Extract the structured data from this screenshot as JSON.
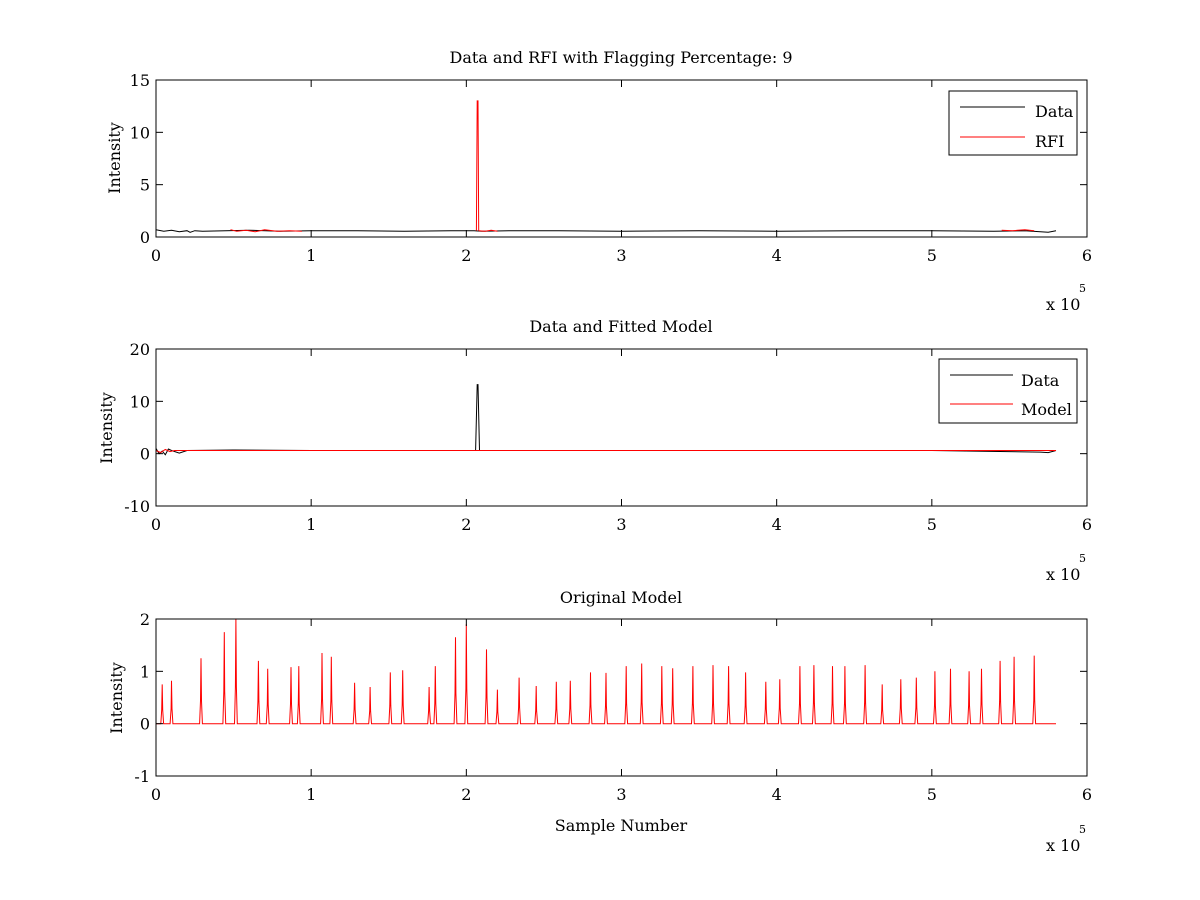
{
  "figure": {
    "background": "#ffffff",
    "axis_color": "#000000"
  },
  "chart_data": [
    {
      "type": "line",
      "title": "Data and RFI with Flagging Percentage: 9",
      "xlabel": "",
      "ylabel": "Intensity",
      "xlim": [
        0,
        600000
      ],
      "ylim": [
        0,
        15
      ],
      "x_ticks": [
        0,
        100000,
        200000,
        300000,
        400000,
        500000,
        600000
      ],
      "x_tick_labels": [
        "0",
        "1",
        "2",
        "3",
        "4",
        "5",
        "6"
      ],
      "y_ticks": [
        0,
        5,
        10,
        15
      ],
      "y_tick_labels": [
        "0",
        "5",
        "10",
        "15"
      ],
      "x_multiplier": {
        "base": "x 10",
        "exponent": "5"
      },
      "grid": false,
      "legend_position": "top-right",
      "legend": [
        "Data",
        "RFI"
      ],
      "series": [
        {
          "name": "Data",
          "color": "#000000",
          "baseline": 0.6,
          "x": [
            0,
            5000,
            10000,
            15000,
            20000,
            22000,
            25000,
            30000,
            45000,
            60000,
            80000,
            100000,
            130000,
            160000,
            190000,
            205000,
            210000,
            230000,
            260000,
            300000,
            350000,
            400000,
            450000,
            500000,
            540000,
            560000,
            570000,
            575000,
            580000
          ],
          "values": [
            0.7,
            0.55,
            0.65,
            0.5,
            0.6,
            0.45,
            0.6,
            0.55,
            0.6,
            0.65,
            0.55,
            0.6,
            0.6,
            0.55,
            0.6,
            0.6,
            0.55,
            0.6,
            0.6,
            0.55,
            0.6,
            0.55,
            0.6,
            0.6,
            0.55,
            0.6,
            0.5,
            0.45,
            0.6
          ]
        },
        {
          "name": "RFI",
          "color": "#ff0000",
          "segments": [
            {
              "x": [
                48000,
                52000,
                58000,
                64000,
                70000,
                78000,
                86000,
                94000
              ],
              "values": [
                0.7,
                0.55,
                0.65,
                0.5,
                0.7,
                0.55,
                0.6,
                0.55
              ]
            },
            {
              "x": [
                206500,
                207000,
                207500,
                208000
              ],
              "values": [
                0.6,
                13,
                13,
                0.6
              ]
            },
            {
              "x": [
                208000,
                212000,
                216000,
                220000
              ],
              "values": [
                0.6,
                0.55,
                0.65,
                0.55
              ]
            },
            {
              "x": [
                545000,
                552000,
                560000,
                566000
              ],
              "values": [
                0.65,
                0.6,
                0.7,
                0.6
              ]
            }
          ]
        }
      ]
    },
    {
      "type": "line",
      "title": "Data and Fitted Model",
      "xlabel": "",
      "ylabel": "Intensity",
      "xlim": [
        0,
        600000
      ],
      "ylim": [
        -10,
        20
      ],
      "x_ticks": [
        0,
        100000,
        200000,
        300000,
        400000,
        500000,
        600000
      ],
      "x_tick_labels": [
        "0",
        "1",
        "2",
        "3",
        "4",
        "5",
        "6"
      ],
      "y_ticks": [
        -10,
        0,
        10,
        20
      ],
      "y_tick_labels": [
        "-10",
        "0",
        "10",
        "20"
      ],
      "x_multiplier": {
        "base": "x 10",
        "exponent": "5"
      },
      "grid": false,
      "legend_position": "top-right",
      "legend": [
        "Data",
        "Model"
      ],
      "series": [
        {
          "name": "Data",
          "color": "#000000",
          "x": [
            0,
            2000,
            4000,
            6000,
            8000,
            10000,
            15000,
            20000,
            50000,
            100000,
            150000,
            200000,
            206000,
            207000,
            207500,
            208500,
            210000,
            300000,
            400000,
            500000,
            570000,
            575000,
            580000
          ],
          "values": [
            1.0,
            0.0,
            0.5,
            -0.2,
            0.9,
            0.6,
            0.1,
            0.6,
            0.7,
            0.6,
            0.6,
            0.6,
            0.6,
            13.2,
            13.2,
            0.6,
            0.6,
            0.6,
            0.6,
            0.6,
            0.3,
            0.2,
            0.6
          ]
        },
        {
          "name": "Model",
          "color": "#ff0000",
          "x": [
            0,
            3000,
            6000,
            9000,
            12000,
            20000,
            100000,
            200000,
            300000,
            400000,
            500000,
            580000
          ],
          "values": [
            0.6,
            0.2,
            0.8,
            0.4,
            0.6,
            0.6,
            0.6,
            0.6,
            0.6,
            0.6,
            0.6,
            0.6
          ]
        }
      ]
    },
    {
      "type": "line",
      "title": "Original Model",
      "xlabel": "Sample Number",
      "ylabel": "Intensity",
      "xlim": [
        0,
        600000
      ],
      "ylim": [
        -1,
        2
      ],
      "x_ticks": [
        0,
        100000,
        200000,
        300000,
        400000,
        500000,
        600000
      ],
      "x_tick_labels": [
        "0",
        "1",
        "2",
        "3",
        "4",
        "5",
        "6"
      ],
      "y_ticks": [
        -1,
        0,
        1,
        2
      ],
      "y_tick_labels": [
        "-1",
        "0",
        "1",
        "2"
      ],
      "x_multiplier": {
        "base": "x 10",
        "exponent": "5"
      },
      "grid": false,
      "legend_position": "none",
      "legend": [],
      "series": [
        {
          "name": "",
          "color": "#ff0000",
          "baseline": 0,
          "x_end": 580000,
          "peaks": [
            {
              "x": 4000,
              "h": 0.75
            },
            {
              "x": 10000,
              "h": 0.82
            },
            {
              "x": 29000,
              "h": 1.25
            },
            {
              "x": 44000,
              "h": 1.75
            },
            {
              "x": 51500,
              "h": 2.0
            },
            {
              "x": 66000,
              "h": 1.2
            },
            {
              "x": 72000,
              "h": 1.05
            },
            {
              "x": 87000,
              "h": 1.08
            },
            {
              "x": 92000,
              "h": 1.1
            },
            {
              "x": 107000,
              "h": 1.35
            },
            {
              "x": 113000,
              "h": 1.28
            },
            {
              "x": 128000,
              "h": 0.78
            },
            {
              "x": 138000,
              "h": 0.7
            },
            {
              "x": 151000,
              "h": 0.98
            },
            {
              "x": 159000,
              "h": 1.02
            },
            {
              "x": 176000,
              "h": 0.7
            },
            {
              "x": 180000,
              "h": 1.1
            },
            {
              "x": 193000,
              "h": 1.65
            },
            {
              "x": 200000,
              "h": 1.9
            },
            {
              "x": 213000,
              "h": 1.42
            },
            {
              "x": 220000,
              "h": 0.65
            },
            {
              "x": 234000,
              "h": 0.88
            },
            {
              "x": 245000,
              "h": 0.72
            },
            {
              "x": 258000,
              "h": 0.8
            },
            {
              "x": 267000,
              "h": 0.82
            },
            {
              "x": 280000,
              "h": 0.98
            },
            {
              "x": 290000,
              "h": 0.97
            },
            {
              "x": 303000,
              "h": 1.1
            },
            {
              "x": 313000,
              "h": 1.15
            },
            {
              "x": 326000,
              "h": 1.1
            },
            {
              "x": 333000,
              "h": 1.06
            },
            {
              "x": 346000,
              "h": 1.1
            },
            {
              "x": 359000,
              "h": 1.12
            },
            {
              "x": 369000,
              "h": 1.1
            },
            {
              "x": 380000,
              "h": 0.98
            },
            {
              "x": 393000,
              "h": 0.8
            },
            {
              "x": 402000,
              "h": 0.85
            },
            {
              "x": 415000,
              "h": 1.1
            },
            {
              "x": 424000,
              "h": 1.12
            },
            {
              "x": 436000,
              "h": 1.1
            },
            {
              "x": 444000,
              "h": 1.1
            },
            {
              "x": 457000,
              "h": 1.12
            },
            {
              "x": 468000,
              "h": 0.75
            },
            {
              "x": 480000,
              "h": 0.85
            },
            {
              "x": 490000,
              "h": 0.88
            },
            {
              "x": 502000,
              "h": 1.0
            },
            {
              "x": 512000,
              "h": 1.05
            },
            {
              "x": 524000,
              "h": 1.0
            },
            {
              "x": 532000,
              "h": 1.05
            },
            {
              "x": 544000,
              "h": 1.2
            },
            {
              "x": 553000,
              "h": 1.28
            },
            {
              "x": 566000,
              "h": 1.3
            }
          ]
        }
      ]
    }
  ]
}
